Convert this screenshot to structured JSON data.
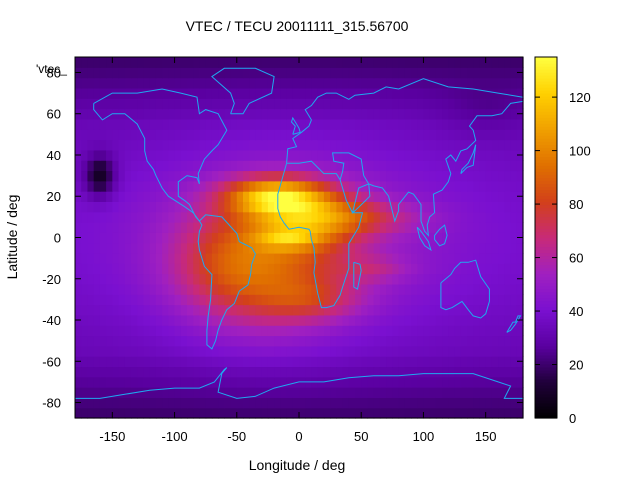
{
  "chart_data": {
    "type": "heatmap",
    "title": "VTEC / TECU 20011111_315.56700",
    "xlabel": "Longitude / deg",
    "ylabel": "Latitude / deg",
    "legend_key": "'vtec_",
    "xlim": [
      -180,
      180
    ],
    "ylim": [
      -87.5,
      87.5
    ],
    "x_ticks": [
      -150,
      -100,
      -50,
      0,
      50,
      100,
      150
    ],
    "y_ticks": [
      -80,
      -60,
      -40,
      -20,
      0,
      20,
      40,
      60,
      80
    ],
    "colorbar": {
      "min": 0,
      "max": 135,
      "ticks": [
        0,
        20,
        40,
        60,
        80,
        100,
        120
      ],
      "palette": [
        "#000000",
        "#20003a",
        "#5a00a0",
        "#7a10d0",
        "#a020c0",
        "#c82a78",
        "#d2401a",
        "#e07000",
        "#f0a000",
        "#ffd000",
        "#ffff40"
      ]
    },
    "grid_step_deg": 5,
    "field_features": [
      {
        "lon": -20,
        "lat": 20,
        "value": 60
      },
      {
        "lon": 10,
        "lat": 10,
        "value": 35
      },
      {
        "lon": -10,
        "lat": 0,
        "value": 25
      },
      {
        "lon": 50,
        "lat": 10,
        "value": 20
      },
      {
        "lon": 60,
        "lat": -15,
        "value": 12
      },
      {
        "lon": -60,
        "lat": -15,
        "value": 10
      },
      {
        "lon": 10,
        "lat": -30,
        "value": 18
      },
      {
        "lon": -160,
        "lat": 30,
        "value": -30
      },
      {
        "lon": 150,
        "lat": 60,
        "value": -5
      }
    ],
    "coastlines": [
      {
        "name": "north-america",
        "points": [
          [
            -165,
            65
          ],
          [
            -150,
            70
          ],
          [
            -130,
            70
          ],
          [
            -110,
            72
          ],
          [
            -95,
            70
          ],
          [
            -82,
            68
          ],
          [
            -80,
            60
          ],
          [
            -75,
            62
          ],
          [
            -65,
            60
          ],
          [
            -58,
            52
          ],
          [
            -65,
            45
          ],
          [
            -70,
            42
          ],
          [
            -76,
            38
          ],
          [
            -81,
            31
          ],
          [
            -80,
            26
          ],
          [
            -82,
            29
          ],
          [
            -90,
            30
          ],
          [
            -97,
            27
          ],
          [
            -97,
            20
          ],
          [
            -92,
            18
          ],
          [
            -88,
            16
          ],
          [
            -83,
            10
          ],
          [
            -80,
            8
          ],
          [
            -85,
            12
          ],
          [
            -92,
            15
          ],
          [
            -105,
            20
          ],
          [
            -110,
            24
          ],
          [
            -115,
            30
          ],
          [
            -117,
            33
          ],
          [
            -122,
            37
          ],
          [
            -124,
            42
          ],
          [
            -124,
            48
          ],
          [
            -130,
            55
          ],
          [
            -140,
            60
          ],
          [
            -150,
            60
          ],
          [
            -158,
            57
          ],
          [
            -165,
            62
          ],
          [
            -165,
            65
          ]
        ]
      },
      {
        "name": "greenland",
        "points": [
          [
            -55,
            60
          ],
          [
            -45,
            60
          ],
          [
            -40,
            65
          ],
          [
            -22,
            70
          ],
          [
            -20,
            78
          ],
          [
            -35,
            82
          ],
          [
            -60,
            82
          ],
          [
            -70,
            78
          ],
          [
            -55,
            70
          ],
          [
            -52,
            65
          ],
          [
            -55,
            60
          ]
        ]
      },
      {
        "name": "south-america",
        "points": [
          [
            -80,
            8
          ],
          [
            -75,
            11
          ],
          [
            -62,
            10
          ],
          [
            -50,
            2
          ],
          [
            -48,
            -2
          ],
          [
            -38,
            -5
          ],
          [
            -35,
            -8
          ],
          [
            -38,
            -13
          ],
          [
            -39,
            -18
          ],
          [
            -41,
            -23
          ],
          [
            -48,
            -26
          ],
          [
            -52,
            -32
          ],
          [
            -58,
            -35
          ],
          [
            -62,
            -40
          ],
          [
            -65,
            -45
          ],
          [
            -67,
            -50
          ],
          [
            -70,
            -54
          ],
          [
            -74,
            -52
          ],
          [
            -74,
            -45
          ],
          [
            -73,
            -38
          ],
          [
            -71,
            -30
          ],
          [
            -70,
            -18
          ],
          [
            -76,
            -14
          ],
          [
            -80,
            -6
          ],
          [
            -81,
            -2
          ],
          [
            -80,
            3
          ],
          [
            -78,
            6
          ],
          [
            -80,
            8
          ]
        ]
      },
      {
        "name": "europe-africa",
        "points": [
          [
            -10,
            36
          ],
          [
            -17,
            21
          ],
          [
            -17,
            14
          ],
          [
            -15,
            10
          ],
          [
            -12,
            7
          ],
          [
            -8,
            4
          ],
          [
            0,
            5
          ],
          [
            8,
            4
          ],
          [
            9,
            3
          ],
          [
            10,
            -1
          ],
          [
            12,
            -5
          ],
          [
            13,
            -12
          ],
          [
            12,
            -17
          ],
          [
            15,
            -27
          ],
          [
            18,
            -34
          ],
          [
            22,
            -34
          ],
          [
            28,
            -33
          ],
          [
            33,
            -28
          ],
          [
            35,
            -24
          ],
          [
            40,
            -15
          ],
          [
            40,
            -10
          ],
          [
            40,
            -3
          ],
          [
            48,
            5
          ],
          [
            51,
            12
          ],
          [
            43,
            12
          ],
          [
            38,
            18
          ],
          [
            33,
            28
          ],
          [
            30,
            31
          ],
          [
            20,
            31
          ],
          [
            10,
            37
          ],
          [
            0,
            36
          ],
          [
            -6,
            36
          ],
          [
            -10,
            36
          ]
        ]
      },
      {
        "name": "europe",
        "points": [
          [
            -10,
            36
          ],
          [
            -9,
            43
          ],
          [
            -2,
            44
          ],
          [
            -5,
            48
          ],
          [
            2,
            51
          ],
          [
            8,
            54
          ],
          [
            10,
            57
          ],
          [
            5,
            62
          ],
          [
            10,
            64
          ],
          [
            15,
            68
          ],
          [
            22,
            70
          ],
          [
            30,
            70
          ],
          [
            40,
            67
          ],
          [
            45,
            69
          ],
          [
            60,
            70
          ],
          [
            70,
            73
          ],
          [
            80,
            72
          ],
          [
            100,
            77
          ],
          [
            120,
            73
          ],
          [
            140,
            72
          ],
          [
            160,
            70
          ],
          [
            180,
            68
          ]
        ]
      },
      {
        "name": "asia",
        "points": [
          [
            33,
            28
          ],
          [
            35,
            32
          ],
          [
            36,
            36
          ],
          [
            28,
            37
          ],
          [
            27,
            41
          ],
          [
            40,
            41
          ],
          [
            50,
            38
          ],
          [
            52,
            30
          ],
          [
            56,
            26
          ],
          [
            57,
            20
          ],
          [
            52,
            17
          ],
          [
            45,
            13
          ],
          [
            43,
            12
          ],
          [
            48,
            24
          ],
          [
            56,
            26
          ],
          [
            60,
            25
          ],
          [
            67,
            24
          ],
          [
            72,
            20
          ],
          [
            77,
            8
          ],
          [
            80,
            13
          ],
          [
            80,
            16
          ],
          [
            88,
            22
          ],
          [
            92,
            21
          ],
          [
            98,
            16
          ],
          [
            98,
            8
          ],
          [
            101,
            3
          ],
          [
            104,
            1
          ],
          [
            103,
            6
          ],
          [
            105,
            10
          ],
          [
            109,
            12
          ],
          [
            108,
            21
          ],
          [
            115,
            23
          ],
          [
            120,
            27
          ],
          [
            122,
            31
          ],
          [
            118,
            38
          ],
          [
            122,
            40
          ],
          [
            126,
            37
          ],
          [
            130,
            42
          ],
          [
            135,
            43
          ],
          [
            142,
            47
          ],
          [
            140,
            52
          ],
          [
            137,
            54
          ],
          [
            143,
            59
          ],
          [
            155,
            59
          ],
          [
            163,
            60
          ],
          [
            170,
            65
          ],
          [
            180,
            66
          ]
        ]
      },
      {
        "name": "australia",
        "points": [
          [
            114,
            -22
          ],
          [
            114,
            -34
          ],
          [
            118,
            -35
          ],
          [
            123,
            -34
          ],
          [
            131,
            -31
          ],
          [
            136,
            -35
          ],
          [
            140,
            -38
          ],
          [
            146,
            -39
          ],
          [
            150,
            -37
          ],
          [
            153,
            -31
          ],
          [
            153,
            -25
          ],
          [
            146,
            -19
          ],
          [
            142,
            -11
          ],
          [
            136,
            -12
          ],
          [
            130,
            -12
          ],
          [
            125,
            -15
          ],
          [
            122,
            -18
          ],
          [
            114,
            -22
          ]
        ]
      },
      {
        "name": "borneo",
        "points": [
          [
            109,
            -1
          ],
          [
            113,
            -4
          ],
          [
            117,
            -3
          ],
          [
            119,
            1
          ],
          [
            117,
            6
          ],
          [
            113,
            4
          ],
          [
            109,
            1
          ],
          [
            109,
            -1
          ]
        ]
      },
      {
        "name": "sumatra",
        "points": [
          [
            95,
            5
          ],
          [
            98,
            3
          ],
          [
            104,
            -2
          ],
          [
            106,
            -6
          ],
          [
            101,
            -4
          ],
          [
            97,
            0
          ],
          [
            95,
            5
          ]
        ]
      },
      {
        "name": "madagascar",
        "points": [
          [
            44,
            -12
          ],
          [
            49,
            -13
          ],
          [
            50,
            -16
          ],
          [
            47,
            -25
          ],
          [
            44,
            -24
          ],
          [
            44,
            -12
          ]
        ]
      },
      {
        "name": "japan",
        "points": [
          [
            130,
            31
          ],
          [
            135,
            34
          ],
          [
            140,
            35
          ],
          [
            141,
            40
          ],
          [
            142,
            45
          ],
          [
            140,
            41
          ],
          [
            136,
            36
          ],
          [
            131,
            33
          ],
          [
            130,
            31
          ]
        ]
      },
      {
        "name": "uk",
        "points": [
          [
            -5,
            50
          ],
          [
            1,
            51
          ],
          [
            0,
            53
          ],
          [
            -3,
            56
          ],
          [
            -5,
            58
          ],
          [
            -6,
            56
          ],
          [
            -3,
            54
          ],
          [
            -5,
            50
          ]
        ]
      },
      {
        "name": "new-zealand",
        "points": [
          [
            167,
            -46
          ],
          [
            172,
            -41
          ],
          [
            174,
            -41
          ],
          [
            176,
            -38
          ],
          [
            178,
            -38
          ],
          [
            174,
            -42
          ],
          [
            170,
            -45
          ],
          [
            167,
            -46
          ]
        ]
      },
      {
        "name": "antarctica",
        "points": [
          [
            -180,
            -78
          ],
          [
            -160,
            -78
          ],
          [
            -140,
            -76
          ],
          [
            -120,
            -74
          ],
          [
            -100,
            -73
          ],
          [
            -80,
            -73
          ],
          [
            -68,
            -70
          ],
          [
            -60,
            -64
          ],
          [
            -58,
            -63
          ],
          [
            -62,
            -66
          ],
          [
            -65,
            -75
          ],
          [
            -50,
            -78
          ],
          [
            -35,
            -77
          ],
          [
            -20,
            -73
          ],
          [
            0,
            -70
          ],
          [
            20,
            -70
          ],
          [
            40,
            -68
          ],
          [
            60,
            -67
          ],
          [
            80,
            -67
          ],
          [
            100,
            -66
          ],
          [
            120,
            -66
          ],
          [
            140,
            -66
          ],
          [
            160,
            -70
          ],
          [
            170,
            -72
          ],
          [
            165,
            -78
          ],
          [
            180,
            -78
          ]
        ]
      }
    ]
  }
}
